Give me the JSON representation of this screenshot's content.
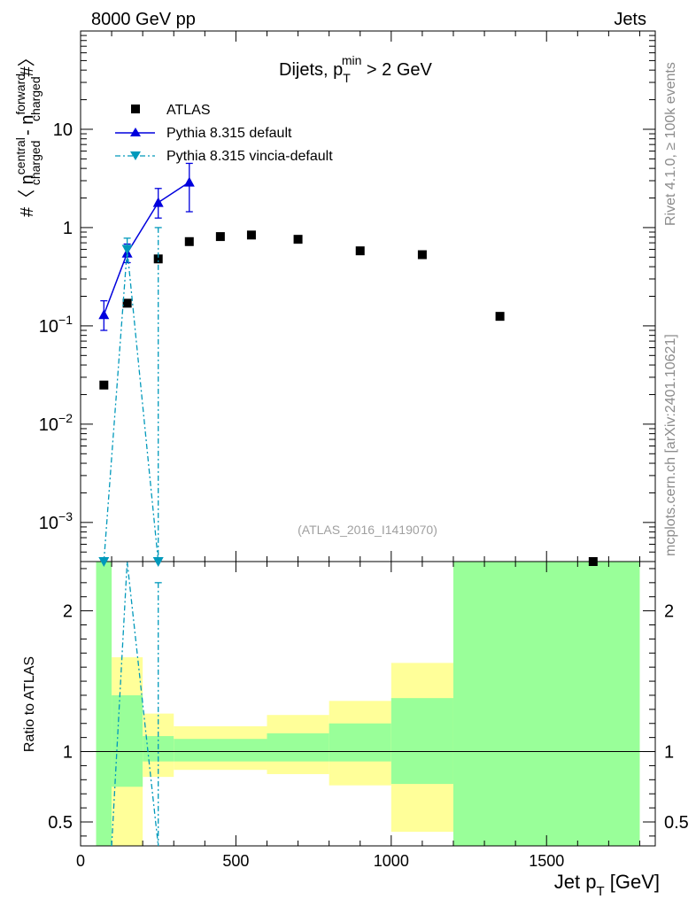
{
  "header": {
    "left": "8000 GeV pp",
    "right": "Jets"
  },
  "side_labels": {
    "rivet": "Rivet 4.1.0, ≥ 100k events",
    "mcplots": "mcplots.cern.ch [arXiv:2401.10621]"
  },
  "watermark": "(ATLAS_2016_I1419070)",
  "colors": {
    "atlas": "#000000",
    "pythia_default": "#0000dd",
    "pythia_vincia": "#0099bb",
    "band_green": "#99ff99",
    "band_yellow": "#ffff99"
  },
  "chart_data": [
    {
      "type": "scatter",
      "title_parts": {
        "prefix": "Dijets, p",
        "sup": "min",
        "sub": "T",
        "suffix": " > 2 GeV"
      },
      "ylabel_parts": {
        "a": "#〈 n",
        "a_sup": "central",
        "a_sub": "charged",
        "b": " - n",
        "b_sup": "forward",
        "b_sub": "charged",
        "c": "#〉"
      },
      "yscale": "log",
      "ylim": [
        0.0004,
        100
      ],
      "xlim": [
        0,
        1850
      ],
      "yticks": [
        {
          "v": 0.001,
          "base": "10",
          "exp": "−3"
        },
        {
          "v": 0.01,
          "base": "10",
          "exp": "−2"
        },
        {
          "v": 0.1,
          "base": "10",
          "exp": "−1"
        },
        {
          "v": 1,
          "label": "1"
        },
        {
          "v": 10,
          "label": "10"
        }
      ],
      "legend": [
        {
          "key": "atlas",
          "label": "ATLAS"
        },
        {
          "key": "pythia_default",
          "label": "Pythia 8.315 default"
        },
        {
          "key": "pythia_vincia",
          "label": "Pythia 8.315 vincia-default"
        }
      ],
      "series": [
        {
          "name": "ATLAS",
          "x": [
            75,
            150,
            250,
            350,
            450,
            550,
            700,
            900,
            1100,
            1350,
            1650
          ],
          "y": [
            0.025,
            0.17,
            0.48,
            0.72,
            0.81,
            0.84,
            0.76,
            0.58,
            0.53,
            0.125,
            0.0004
          ]
        },
        {
          "name": "Pythia 8.315 default",
          "x": [
            75,
            150,
            250,
            350
          ],
          "y": [
            0.13,
            0.55,
            1.8,
            2.9
          ],
          "yerr_low": [
            0.09,
            0.44,
            1.25,
            1.45
          ],
          "yerr_high": [
            0.18,
            0.68,
            2.5,
            4.5
          ]
        },
        {
          "name": "Pythia 8.315 vincia-default",
          "x": [
            75,
            150,
            250
          ],
          "y": [
            0.0004,
            0.6,
            0.0004
          ],
          "yerr_low": [
            0.0004,
            0.45,
            0.0004
          ],
          "yerr_high": [
            0.0004,
            0.78,
            1.0
          ]
        }
      ]
    },
    {
      "type": "ratio",
      "ylabel": "Ratio to ATLAS",
      "ylim": [
        0.33,
        2.35
      ],
      "yticks": [
        {
          "v": 0.5,
          "label": "0.5"
        },
        {
          "v": 1,
          "label": "1"
        },
        {
          "v": 2,
          "label": "2"
        }
      ],
      "xticks": [
        {
          "v": 0,
          "label": "0"
        },
        {
          "v": 500,
          "label": "500"
        },
        {
          "v": 1000,
          "label": "1000"
        },
        {
          "v": 1500,
          "label": "1500"
        }
      ],
      "xlabel_parts": {
        "a": "Jet p",
        "sub": "T",
        "b": " [GeV]"
      },
      "bands": [
        {
          "x0": 50,
          "x1": 100,
          "y_lo": 0.33,
          "y_hi": 2.35,
          "g_lo": 0.33,
          "g_hi": 2.35
        },
        {
          "x0": 100,
          "x1": 200,
          "y_lo": 0.33,
          "y_hi": 1.67,
          "g_lo": 0.75,
          "g_hi": 1.4
        },
        {
          "x0": 200,
          "x1": 300,
          "y_lo": 0.82,
          "y_hi": 1.27,
          "g_lo": 0.93,
          "g_hi": 1.11
        },
        {
          "x0": 300,
          "x1": 600,
          "y_lo": 0.87,
          "y_hi": 1.18,
          "g_lo": 0.93,
          "g_hi": 1.09
        },
        {
          "x0": 600,
          "x1": 800,
          "y_lo": 0.84,
          "y_hi": 1.26,
          "g_lo": 0.93,
          "g_hi": 1.13
        },
        {
          "x0": 800,
          "x1": 1000,
          "y_lo": 0.76,
          "y_hi": 1.36,
          "g_lo": 0.93,
          "g_hi": 1.2
        },
        {
          "x0": 1000,
          "x1": 1200,
          "y_lo": 0.43,
          "y_hi": 1.63,
          "g_lo": 0.77,
          "g_hi": 1.38
        },
        {
          "x0": 1200,
          "x1": 1800,
          "y_lo": 0.33,
          "y_hi": 2.35,
          "g_lo": 0.33,
          "g_hi": 2.35
        }
      ],
      "vincia_ratio": {
        "x": [
          100,
          150,
          250
        ],
        "y": [
          0.2,
          3.5,
          0.2
        ],
        "err": [
          [
            250,
            0.33,
            2.2
          ]
        ]
      }
    }
  ]
}
